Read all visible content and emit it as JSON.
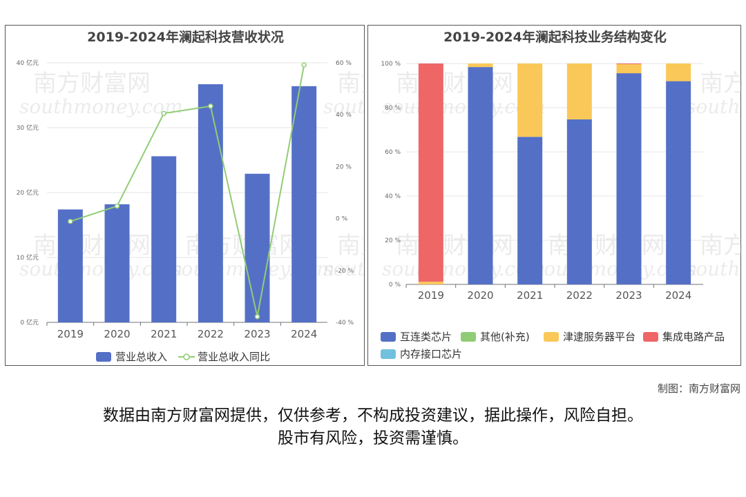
{
  "chart_data": [
    {
      "type": "bar",
      "title": "2019-2024年澜起科技营收状况",
      "categories": [
        "2019",
        "2020",
        "2021",
        "2022",
        "2023",
        "2024"
      ],
      "y_left": {
        "ticks": [
          "0 亿元",
          "10 亿元",
          "20 亿元",
          "30 亿元",
          "40 亿元"
        ],
        "range": [
          0,
          40
        ]
      },
      "y_right": {
        "ticks": [
          "-40 %",
          "-20 %",
          "0 %",
          "20 %",
          "40 %",
          "60 %"
        ],
        "range": [
          -40,
          60
        ]
      },
      "series": [
        {
          "name": "营业总收入",
          "kind": "bar",
          "axis": "left",
          "color": "#5470c6",
          "values": [
            17.4,
            18.2,
            25.6,
            36.7,
            22.9,
            36.4
          ]
        },
        {
          "name": "营业总收入同比",
          "kind": "line",
          "axis": "right",
          "color": "#91cc75",
          "values": [
            -1.1,
            4.8,
            40.5,
            43.3,
            -37.8,
            59.2
          ]
        }
      ],
      "legend": "bottom"
    },
    {
      "type": "bar",
      "stacked": true,
      "title": "2019-2024年澜起科技业务结构变化",
      "categories": [
        "2019",
        "2020",
        "2021",
        "2022",
        "2023",
        "2024"
      ],
      "y": {
        "ticks": [
          "0 %",
          "20 %",
          "40 %",
          "60 %",
          "80 %",
          "100 %"
        ],
        "range": [
          0,
          100
        ]
      },
      "series": [
        {
          "name": "互连类芯片",
          "color": "#5470c6",
          "values": [
            0,
            98.4,
            66.8,
            74.7,
            95.6,
            92.0
          ]
        },
        {
          "name": "其他(补充)",
          "color": "#91cc75",
          "values": [
            0,
            0,
            0,
            0,
            0,
            0
          ]
        },
        {
          "name": "津逮服务器平台",
          "color": "#fac858",
          "values": [
            1.2,
            1.6,
            33.2,
            25.3,
            4.1,
            8.0
          ]
        },
        {
          "name": "集成电路产品",
          "color": "#ee6666",
          "values": [
            98.8,
            0,
            0,
            0,
            0.3,
            0
          ]
        },
        {
          "name": "内存接口芯片",
          "color": "#73c0de",
          "values": [
            0,
            0,
            0,
            0,
            0,
            0
          ]
        }
      ],
      "legend": "bottom"
    }
  ],
  "watermark": {
    "cn": "南方财富网",
    "en": "southmoney.com"
  },
  "credit": "制图：南方财富网",
  "disclaimer": {
    "line1": "数据由南方财富网提供，仅供参考，不构成投资建议，据此操作，风险自担。",
    "line2": "股市有风险，投资需谨慎。"
  }
}
